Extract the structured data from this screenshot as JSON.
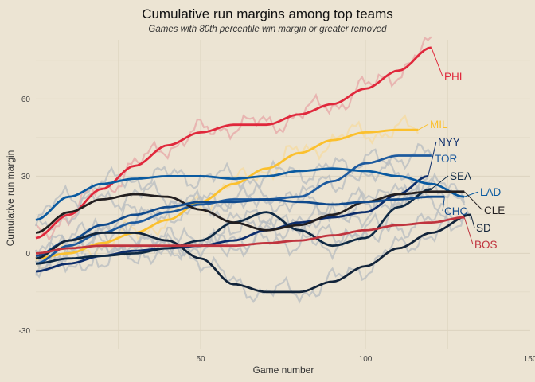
{
  "chart_data": {
    "type": "line",
    "title": "Cumulative run margins among top teams",
    "subtitle": "Games with 80th percentile win margin or greater removed",
    "xlabel": "Game number",
    "ylabel": "Cumulative run margin",
    "xlim": [
      0,
      150
    ],
    "ylim": [
      -37,
      83
    ],
    "x_ticks": [
      50,
      100,
      150
    ],
    "y_ticks": [
      -30,
      0,
      30,
      60
    ],
    "grid": true,
    "legend": "none (direct labels at line ends)",
    "series": [
      {
        "name": "PHI",
        "color": "#e0283c",
        "x": [
          0,
          10,
          20,
          30,
          40,
          50,
          60,
          70,
          80,
          90,
          100,
          110,
          120
        ],
        "values": [
          6,
          15,
          25,
          34,
          42,
          47,
          50,
          50,
          54,
          58,
          64,
          71,
          80
        ]
      },
      {
        "name": "MIL",
        "color": "#fbc02d",
        "x": [
          0,
          10,
          20,
          30,
          40,
          50,
          60,
          70,
          80,
          90,
          100,
          110,
          116
        ],
        "values": [
          -2,
          0,
          4,
          8,
          13,
          20,
          27,
          33,
          39,
          44,
          47,
          48,
          48
        ]
      },
      {
        "name": "NYY",
        "color": "#0c2d6b",
        "x": [
          0,
          10,
          20,
          30,
          40,
          50,
          60,
          70,
          80,
          90,
          100,
          110,
          119
        ],
        "values": [
          -7,
          -4,
          -1,
          1,
          2,
          3,
          5,
          9,
          12,
          14,
          16,
          23,
          30
        ]
      },
      {
        "name": "TOR",
        "color": "#1d5a9e",
        "x": [
          0,
          10,
          20,
          30,
          40,
          50,
          60,
          70,
          80,
          90,
          100,
          110,
          120
        ],
        "values": [
          -4,
          3,
          8,
          12,
          16,
          19,
          21,
          21,
          22,
          28,
          35,
          38,
          38
        ]
      },
      {
        "name": "SEA",
        "color": "#0f2a45",
        "x": [
          0,
          10,
          20,
          30,
          40,
          50,
          60,
          70,
          80,
          90,
          100,
          110,
          120
        ],
        "values": [
          -4,
          -2,
          -1,
          0,
          2,
          5,
          12,
          16,
          9,
          3,
          6,
          18,
          25
        ]
      },
      {
        "name": "LAD",
        "color": "#0a5aa0",
        "x": [
          0,
          10,
          20,
          30,
          40,
          50,
          60,
          70,
          80,
          90,
          100,
          110,
          120,
          130
        ],
        "values": [
          13,
          22,
          27,
          29,
          30,
          30,
          29,
          30,
          32,
          33,
          32,
          30,
          27,
          22
        ]
      },
      {
        "name": "CLE",
        "color": "#231f20",
        "x": [
          0,
          10,
          20,
          30,
          40,
          50,
          60,
          70,
          80,
          90,
          100,
          110,
          120,
          130
        ],
        "values": [
          8,
          16,
          21,
          23,
          22,
          17,
          12,
          9,
          11,
          15,
          20,
          23,
          24,
          24
        ]
      },
      {
        "name": "CHC",
        "color": "#104a8c",
        "x": [
          0,
          10,
          20,
          30,
          40,
          50,
          60,
          70,
          80,
          90,
          100,
          110,
          120,
          124
        ],
        "values": [
          -1,
          5,
          11,
          15,
          18,
          20,
          20,
          21,
          20,
          19,
          20,
          21,
          22,
          22
        ]
      },
      {
        "name": "SD",
        "color": "#12243a",
        "x": [
          0,
          10,
          20,
          30,
          40,
          50,
          60,
          70,
          80,
          90,
          100,
          110,
          120,
          132
        ],
        "values": [
          -2,
          5,
          8,
          8,
          5,
          -2,
          -12,
          -15,
          -15,
          -11,
          -5,
          2,
          8,
          15
        ]
      },
      {
        "name": "BOS",
        "color": "#c0343e",
        "x": [
          0,
          10,
          20,
          30,
          40,
          50,
          60,
          70,
          80,
          90,
          100,
          110,
          120,
          130
        ],
        "values": [
          0,
          2,
          3,
          3,
          3,
          3,
          3,
          4,
          5,
          7,
          9,
          11,
          12,
          14
        ]
      }
    ]
  }
}
